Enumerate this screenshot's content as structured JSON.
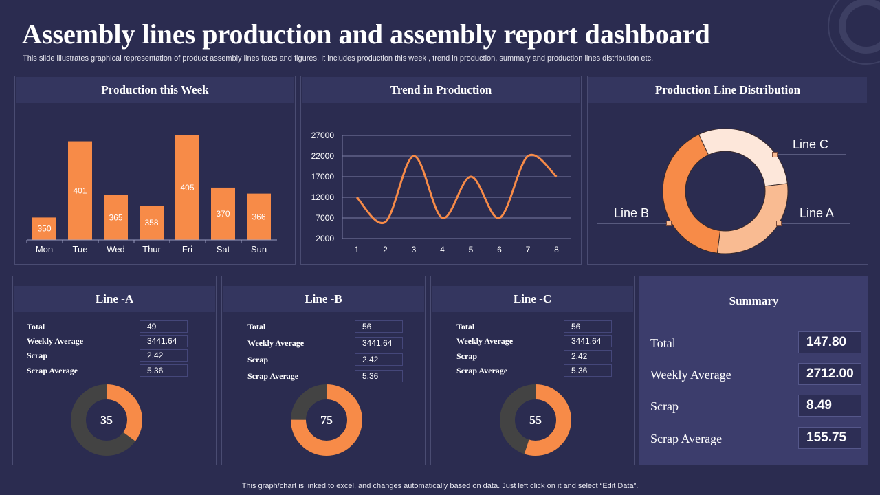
{
  "title": "Assembly lines production and assembly report dashboard",
  "subtitle": "This slide illustrates graphical representation of product assembly lines facts and figures. It includes production this week , trend in production, summary and production lines distribution etc.",
  "footer": "This graph/chart is linked to excel,  and changes automatically based on data. Just left click on it and select “Edit Data”.",
  "colors": {
    "background": "#2b2c50",
    "accent": "#f78b48",
    "dark_ring": "#434343",
    "line_a": "#f9bb92",
    "line_b": "#f78b48",
    "line_c": "#fde7da"
  },
  "chart_data": [
    {
      "type": "bar",
      "title": "Production this Week",
      "categories": [
        "Mon",
        "Tue",
        "Wed",
        "Thur",
        "Fri",
        "Sat",
        "Sun"
      ],
      "values": [
        350,
        401,
        365,
        358,
        405,
        370,
        366
      ],
      "data_labels": [
        "350",
        "401",
        "365",
        "358",
        "405",
        "370",
        "366"
      ],
      "ylim": [
        330,
        410
      ]
    },
    {
      "type": "line",
      "title": "Trend in Production",
      "x": [
        1,
        2,
        3,
        4,
        5,
        6,
        7,
        8
      ],
      "values": [
        12000,
        6000,
        22000,
        7000,
        17000,
        7000,
        22000,
        17000
      ],
      "yticks": [
        "2000",
        "7000",
        "12000",
        "17000",
        "22000",
        "27000"
      ],
      "ylim": [
        2000,
        27000
      ],
      "grid": true
    },
    {
      "type": "pie",
      "title": "Production Line Distribution",
      "donut": true,
      "labels": [
        "Line C",
        "Line A",
        "Line B"
      ],
      "values": [
        30,
        29,
        41
      ]
    }
  ],
  "lines": [
    {
      "title": "Line -A",
      "rows": [
        {
          "label": "Total",
          "value": "49"
        },
        {
          "label": "Weekly Average",
          "value": "3441.64"
        },
        {
          "label": "Scrap",
          "value": "2.42"
        },
        {
          "label": "Scrap Average",
          "value": "5.36"
        }
      ],
      "percent": 35,
      "center": "35"
    },
    {
      "title": "Line -B",
      "rows": [
        {
          "label": "Total",
          "value": "56"
        },
        {
          "label": "Weekly Average",
          "value": "3441.64"
        },
        {
          "label": "Scrap",
          "value": "2.42"
        },
        {
          "label": "Scrap Average",
          "value": "5.36"
        }
      ],
      "percent": 75,
      "center": "75"
    },
    {
      "title": "Line -C",
      "rows": [
        {
          "label": "Total",
          "value": "56"
        },
        {
          "label": "Weekly Average",
          "value": "3441.64"
        },
        {
          "label": "Scrap",
          "value": "2.42"
        },
        {
          "label": "Scrap Average",
          "value": "5.36"
        }
      ],
      "percent": 55,
      "center": "55"
    }
  ],
  "summary": {
    "title": "Summary",
    "rows": [
      {
        "label": "Total",
        "value": "147.80"
      },
      {
        "label": "Weekly Average",
        "value": "2712.00"
      },
      {
        "label": "Scrap",
        "value": "8.49"
      },
      {
        "label": "Scrap Average",
        "value": "155.75"
      }
    ]
  }
}
